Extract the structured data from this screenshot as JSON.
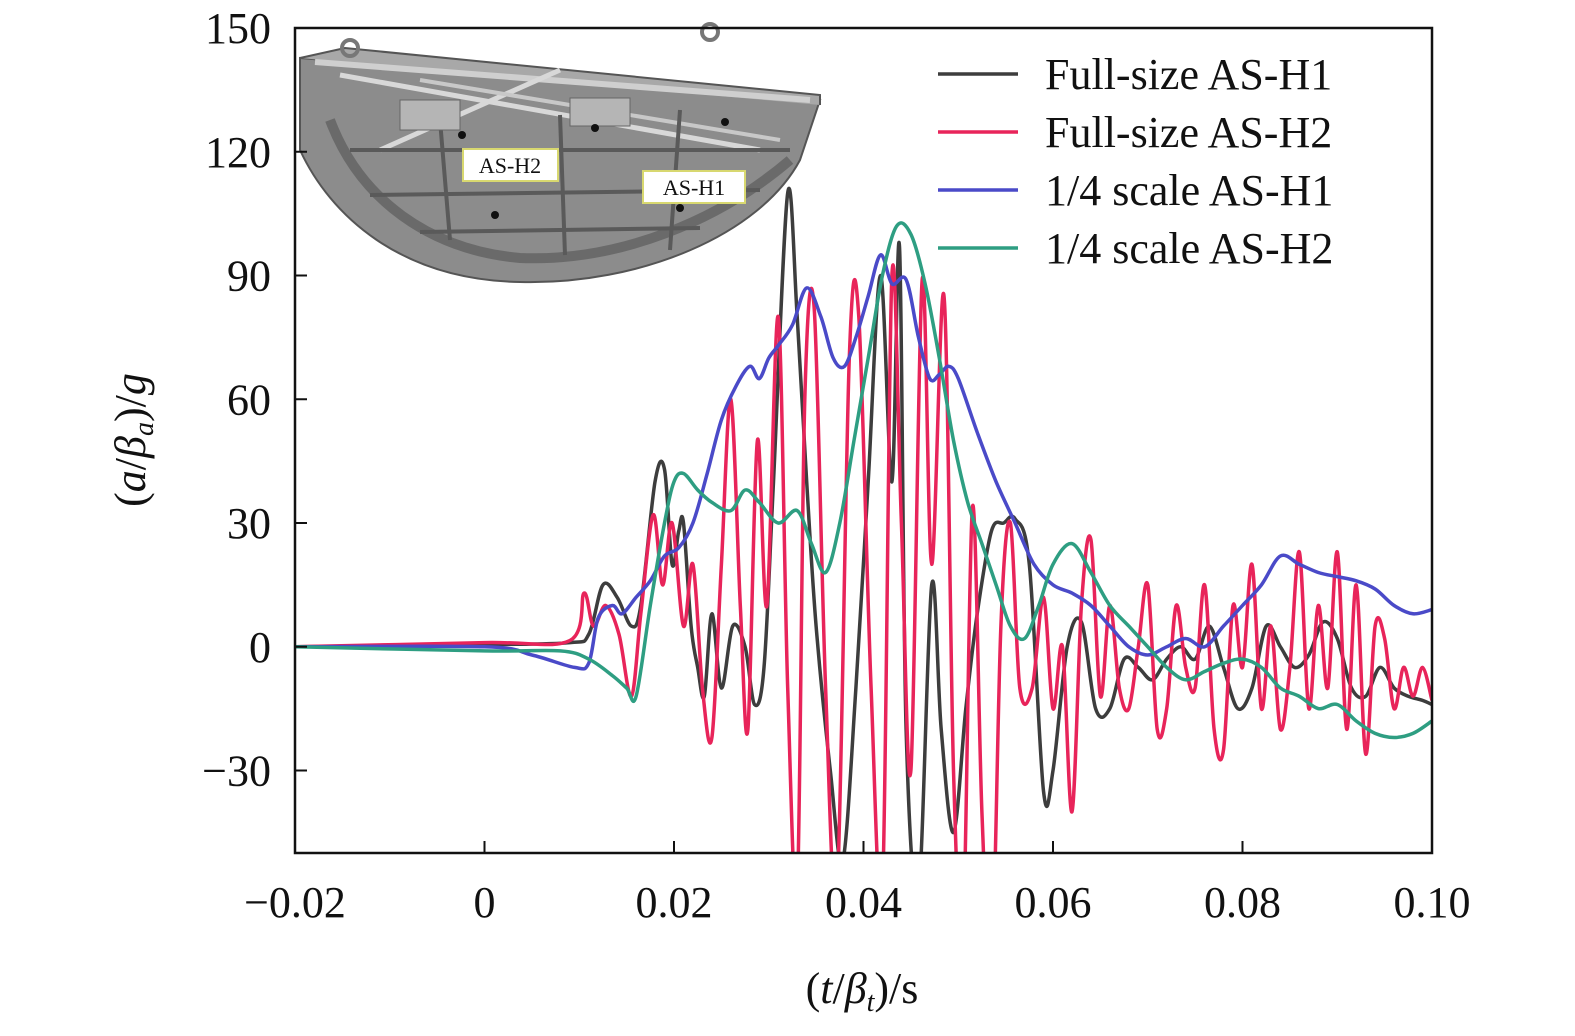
{
  "chart_data": {
    "type": "line",
    "xlabel": {
      "prefix": "(",
      "var": "t",
      "slash": "/",
      "greek": "β",
      "sub": "t",
      "suffix": ")/s"
    },
    "ylabel": {
      "prefix": "(",
      "var": "a",
      "slash": "/",
      "greek": "β",
      "sub": "a",
      "suffix": ")/",
      "var2": "g"
    },
    "xlim": [
      -0.02,
      0.1
    ],
    "ylim": [
      -50,
      150
    ],
    "x_ticks": [
      -0.02,
      0,
      0.02,
      0.04,
      0.06,
      0.08,
      0.1
    ],
    "x_tick_labels": [
      "−0.02",
      "0",
      "0.02",
      "0.04",
      "0.06",
      "0.08",
      "0.10"
    ],
    "y_ticks": [
      -30,
      0,
      30,
      60,
      90,
      120,
      150
    ],
    "y_tick_labels": [
      "−30",
      "0",
      "30",
      "60",
      "90",
      "120",
      "150"
    ],
    "legend_position": "top-right",
    "inset": {
      "description_labels": [
        "AS-H2",
        "AS-H1"
      ]
    },
    "series": [
      {
        "name": "Full-size AS-H1",
        "color": "#3d3d3d",
        "x": [
          -0.02,
          0,
          0.009,
          0.011,
          0.0125,
          0.014,
          0.0155,
          0.0165,
          0.018,
          0.019,
          0.0198,
          0.0205,
          0.021,
          0.0218,
          0.0225,
          0.0232,
          0.024,
          0.025,
          0.0262,
          0.0275,
          0.0285,
          0.0295,
          0.0305,
          0.032,
          0.033,
          0.034,
          0.035,
          0.0365,
          0.0378,
          0.0392,
          0.0405,
          0.0418,
          0.043,
          0.0438,
          0.0445,
          0.0458,
          0.0472,
          0.0482,
          0.0495,
          0.0508,
          0.052,
          0.0535,
          0.0548,
          0.056,
          0.0575,
          0.059,
          0.06,
          0.0615,
          0.063,
          0.0645,
          0.066,
          0.0675,
          0.069,
          0.0705,
          0.072,
          0.0735,
          0.075,
          0.0765,
          0.078,
          0.0795,
          0.081,
          0.0825,
          0.084,
          0.0855,
          0.087,
          0.0885,
          0.09,
          0.0915,
          0.093,
          0.0945,
          0.096,
          0.0975,
          0.099,
          0.1
        ],
        "y": [
          0,
          0.5,
          1,
          3,
          15,
          12,
          5,
          10,
          40,
          43,
          20,
          28,
          30,
          5,
          -5,
          -12,
          8,
          -10,
          5,
          0,
          -14,
          -5,
          40,
          110,
          80,
          40,
          5,
          -30,
          -52,
          -10,
          40,
          90,
          40,
          97,
          -20,
          -60,
          15,
          -20,
          -45,
          -15,
          8,
          28,
          30,
          31,
          20,
          -35,
          -30,
          0,
          6,
          -15,
          -15,
          -3,
          -5,
          -8,
          -3,
          0,
          -3,
          5,
          -5,
          -15,
          -10,
          5,
          0,
          -5,
          -2,
          6,
          2,
          -10,
          -12,
          -5,
          -10,
          -12,
          -13,
          -14
        ]
      },
      {
        "name": "Full-size AS-H2",
        "color": "#e8245a",
        "x": [
          -0.02,
          0,
          0.009,
          0.0105,
          0.0115,
          0.0128,
          0.0142,
          0.0155,
          0.0165,
          0.0178,
          0.0188,
          0.0198,
          0.021,
          0.022,
          0.023,
          0.024,
          0.025,
          0.026,
          0.027,
          0.0278,
          0.0288,
          0.0298,
          0.031,
          0.032,
          0.033,
          0.0338,
          0.0348,
          0.036,
          0.0372,
          0.0385,
          0.0395,
          0.0408,
          0.042,
          0.043,
          0.044,
          0.045,
          0.0462,
          0.0472,
          0.0485,
          0.0495,
          0.0505,
          0.0515,
          0.0525,
          0.0535,
          0.0545,
          0.0555,
          0.0565,
          0.0578,
          0.059,
          0.06,
          0.061,
          0.062,
          0.063,
          0.064,
          0.065,
          0.066,
          0.067,
          0.068,
          0.069,
          0.07,
          0.071,
          0.072,
          0.073,
          0.074,
          0.075,
          0.076,
          0.077,
          0.078,
          0.079,
          0.08,
          0.081,
          0.082,
          0.083,
          0.084,
          0.085,
          0.086,
          0.087,
          0.088,
          0.089,
          0.09,
          0.091,
          0.092,
          0.093,
          0.094,
          0.095,
          0.096,
          0.097,
          0.098,
          0.099,
          0.1
        ],
        "y": [
          0,
          1,
          1.5,
          13,
          5,
          10,
          3,
          -12,
          8,
          32,
          15,
          30,
          5,
          20,
          -10,
          -22,
          20,
          60,
          10,
          -20,
          50,
          10,
          80,
          -10,
          -60,
          60,
          82,
          -10,
          -60,
          70,
          80,
          -10,
          -60,
          90,
          30,
          -30,
          89,
          20,
          85,
          -30,
          -70,
          34,
          -40,
          -80,
          5,
          30,
          -10,
          -10,
          12,
          -15,
          0,
          -40,
          10,
          26,
          -12,
          10,
          -10,
          -15,
          0,
          15,
          -20,
          -15,
          10,
          -5,
          -10,
          15,
          -20,
          -25,
          10,
          -5,
          20,
          -15,
          5,
          -20,
          -5,
          23,
          -15,
          10,
          -10,
          23,
          -20,
          15,
          -26,
          5,
          2,
          -15,
          -5,
          -12,
          -5,
          -13
        ]
      },
      {
        "name": "1/4 scale AS-H1",
        "color": "#4a4ac8",
        "x": [
          -0.02,
          0,
          0.005,
          0.0095,
          0.011,
          0.012,
          0.0135,
          0.0145,
          0.016,
          0.0175,
          0.019,
          0.0205,
          0.022,
          0.0235,
          0.025,
          0.0265,
          0.028,
          0.029,
          0.03,
          0.031,
          0.0325,
          0.034,
          0.0355,
          0.0368,
          0.038,
          0.0392,
          0.0405,
          0.0418,
          0.043,
          0.0445,
          0.0458,
          0.047,
          0.048,
          0.049,
          0.05,
          0.052,
          0.054,
          0.056,
          0.058,
          0.06,
          0.062,
          0.064,
          0.066,
          0.068,
          0.07,
          0.072,
          0.074,
          0.076,
          0.078,
          0.08,
          0.082,
          0.084,
          0.086,
          0.088,
          0.09,
          0.092,
          0.094,
          0.096,
          0.098,
          0.1
        ],
        "y": [
          0,
          0,
          -2,
          -5,
          -4,
          7,
          10,
          8,
          12,
          16,
          22,
          24,
          30,
          42,
          55,
          63,
          68,
          65,
          70,
          73,
          78,
          87,
          80,
          70,
          68,
          75,
          85,
          95,
          88,
          89,
          75,
          65,
          66,
          68,
          65,
          52,
          40,
          30,
          20,
          15,
          13,
          10,
          5,
          0,
          -2,
          0,
          2,
          0,
          5,
          10,
          15,
          22,
          20,
          18,
          17,
          16,
          14,
          10,
          8,
          9
        ]
      },
      {
        "name": "1/4 scale AS-H2",
        "color": "#2e9e82",
        "x": [
          -0.02,
          0,
          0.008,
          0.011,
          0.0135,
          0.015,
          0.016,
          0.0175,
          0.019,
          0.02,
          0.021,
          0.0225,
          0.024,
          0.026,
          0.0275,
          0.029,
          0.031,
          0.033,
          0.0345,
          0.036,
          0.0375,
          0.039,
          0.0405,
          0.042,
          0.0435,
          0.045,
          0.0465,
          0.048,
          0.0495,
          0.051,
          0.0525,
          0.054,
          0.0555,
          0.057,
          0.0585,
          0.06,
          0.062,
          0.064,
          0.066,
          0.068,
          0.07,
          0.072,
          0.074,
          0.076,
          0.078,
          0.08,
          0.082,
          0.084,
          0.086,
          0.088,
          0.09,
          0.092,
          0.094,
          0.096,
          0.098,
          0.1
        ],
        "y": [
          0,
          -1,
          -1,
          -3,
          -7,
          -10,
          -12,
          10,
          30,
          40,
          42,
          38,
          35,
          33,
          38,
          35,
          30,
          33,
          25,
          18,
          30,
          50,
          70,
          90,
          102,
          100,
          88,
          70,
          50,
          35,
          25,
          15,
          5,
          2,
          10,
          20,
          25,
          18,
          10,
          5,
          0,
          -5,
          -8,
          -6,
          -4,
          -3,
          -5,
          -10,
          -12,
          -15,
          -14,
          -18,
          -21,
          -22,
          -21,
          -18
        ]
      }
    ]
  }
}
